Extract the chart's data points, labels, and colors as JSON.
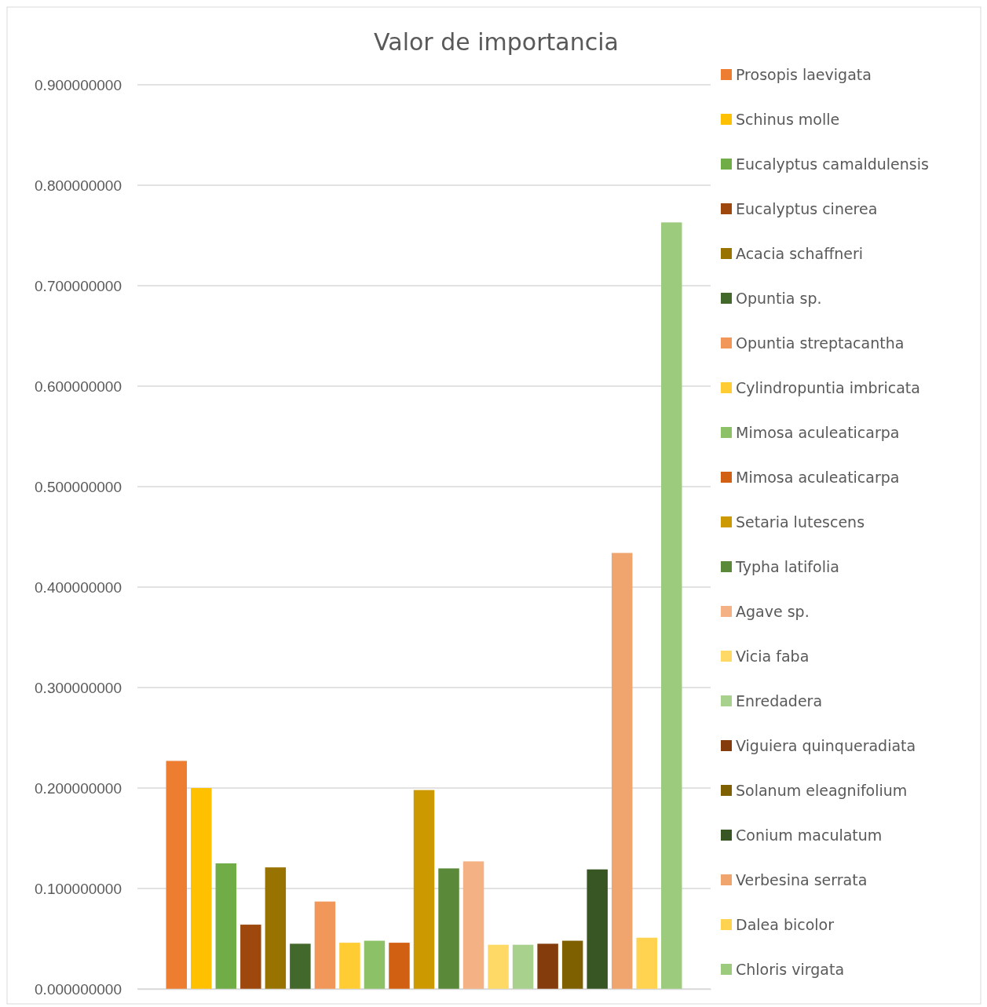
{
  "chart_data": {
    "type": "bar",
    "title": "Valor de importancia",
    "categories": [
      null
    ],
    "ylim": [
      0,
      0.9
    ],
    "yticks": [
      {
        "value": 0,
        "label": "0.000000000"
      },
      {
        "value": 0.1,
        "label": "0.100000000"
      },
      {
        "value": 0.2,
        "label": "0.200000000"
      },
      {
        "value": 0.3,
        "label": "0.300000000"
      },
      {
        "value": 0.4,
        "label": "0.400000000"
      },
      {
        "value": 0.5,
        "label": "0.500000000"
      },
      {
        "value": 0.6,
        "label": "0.600000000"
      },
      {
        "value": 0.7,
        "label": "0.700000000"
      },
      {
        "value": 0.8,
        "label": "0.800000000"
      },
      {
        "value": 0.9,
        "label": "0.900000000"
      }
    ],
    "grid": "y",
    "legend": "right",
    "series": [
      {
        "name": "Prosopis laevigata",
        "color": "#ed7d31",
        "values": [
          0.227
        ]
      },
      {
        "name": "Schinus molle",
        "color": "#ffc000",
        "values": [
          0.2
        ]
      },
      {
        "name": "Eucalyptus camaldulensis",
        "color": "#70ad47",
        "values": [
          0.125
        ]
      },
      {
        "name": "Eucalyptus cinerea",
        "color": "#9e480e",
        "values": [
          0.064
        ]
      },
      {
        "name": "Acacia schaffneri",
        "color": "#997300",
        "values": [
          0.121
        ]
      },
      {
        "name": "Opuntia sp.",
        "color": "#43682b",
        "values": [
          0.045
        ]
      },
      {
        "name": "Opuntia streptacantha",
        "color": "#f1975a",
        "values": [
          0.087
        ]
      },
      {
        "name": "Cylindropuntia imbricata",
        "color": "#ffcd33",
        "values": [
          0.046
        ]
      },
      {
        "name": "Mimosa aculeaticarpa",
        "color": "#8cc168",
        "values": [
          0.048
        ]
      },
      {
        "name": "Mimosa aculeaticarpa",
        "color": "#d26012",
        "values": [
          0.046
        ]
      },
      {
        "name": "Setaria lutescens",
        "color": "#cc9a00",
        "values": [
          0.198
        ]
      },
      {
        "name": "Typha latifolia",
        "color": "#5a8a39",
        "values": [
          0.12
        ]
      },
      {
        "name": "Agave sp.",
        "color": "#f4b183",
        "values": [
          0.127
        ]
      },
      {
        "name": "Vicia faba",
        "color": "#ffd966",
        "values": [
          0.044
        ]
      },
      {
        "name": "Enredadera",
        "color": "#a9d18e",
        "values": [
          0.044
        ]
      },
      {
        "name": "Viguiera quinqueradiata",
        "color": "#843c0c",
        "values": [
          0.045
        ]
      },
      {
        "name": "Solanum eleagnifolium",
        "color": "#7f6000",
        "values": [
          0.048
        ]
      },
      {
        "name": "Conium maculatum",
        "color": "#375623",
        "values": [
          0.119
        ]
      },
      {
        "name": "Verbesina serrata",
        "color": "#f0a46e",
        "values": [
          0.434
        ]
      },
      {
        "name": "Dalea bicolor",
        "color": "#ffd34f",
        "values": [
          0.051
        ]
      },
      {
        "name": "Chloris virgata",
        "color": "#9dcb7d",
        "values": [
          0.763
        ]
      }
    ]
  }
}
